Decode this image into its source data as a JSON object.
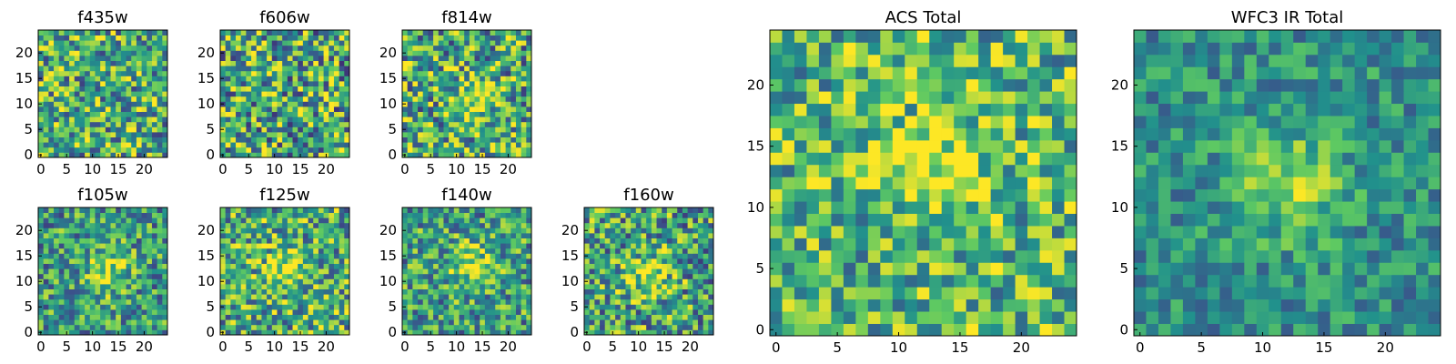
{
  "figure": {
    "description_type": "heatmap grid",
    "colormap": [
      "#440154",
      "#3b528b",
      "#21918c",
      "#5ec962",
      "#fde725"
    ]
  },
  "chart_data": [
    {
      "type": "heatmap",
      "title": "f435w",
      "xticks": [
        0,
        5,
        10,
        15,
        20
      ],
      "yticks": [
        0,
        5,
        10,
        15,
        20
      ],
      "xlim": [
        0,
        24
      ],
      "ylim": [
        0,
        24
      ],
      "grid": 25,
      "bright_spot": null,
      "seed": 11,
      "mean": 0.62,
      "spread": 0.42
    },
    {
      "type": "heatmap",
      "title": "f606w",
      "xticks": [
        0,
        5,
        10,
        15,
        20
      ],
      "yticks": [
        0,
        5,
        10,
        15,
        20
      ],
      "xlim": [
        0,
        24
      ],
      "ylim": [
        0,
        24
      ],
      "grid": 25,
      "bright_spot": null,
      "seed": 23,
      "mean": 0.6,
      "spread": 0.45
    },
    {
      "type": "heatmap",
      "title": "f814w",
      "xticks": [
        0,
        5,
        10,
        15,
        20
      ],
      "yticks": [
        0,
        5,
        10,
        15,
        20
      ],
      "xlim": [
        0,
        24
      ],
      "ylim": [
        0,
        24
      ],
      "grid": 25,
      "bright_spot": [
        13,
        11
      ],
      "seed": 37,
      "mean": 0.6,
      "spread": 0.42
    },
    {
      "type": "heatmap",
      "title": "f105w",
      "xticks": [
        0,
        5,
        10,
        15,
        20
      ],
      "yticks": [
        0,
        5,
        10,
        15,
        20
      ],
      "xlim": [
        0,
        24
      ],
      "ylim": [
        0,
        24
      ],
      "grid": 25,
      "bright_spot": [
        13,
        12
      ],
      "seed": 41,
      "mean": 0.55,
      "spread": 0.35
    },
    {
      "type": "heatmap",
      "title": "f125w",
      "xticks": [
        0,
        5,
        10,
        15,
        20
      ],
      "yticks": [
        0,
        5,
        10,
        15,
        20
      ],
      "xlim": [
        0,
        24
      ],
      "ylim": [
        0,
        24
      ],
      "grid": 25,
      "bright_spot": [
        12,
        12
      ],
      "seed": 53,
      "mean": 0.62,
      "spread": 0.4
    },
    {
      "type": "heatmap",
      "title": "f140w",
      "xticks": [
        0,
        5,
        10,
        15,
        20
      ],
      "yticks": [
        0,
        5,
        10,
        15,
        20
      ],
      "xlim": [
        0,
        24
      ],
      "ylim": [
        0,
        24
      ],
      "grid": 25,
      "bright_spot": [
        13,
        13
      ],
      "seed": 67,
      "mean": 0.56,
      "spread": 0.36
    },
    {
      "type": "heatmap",
      "title": "f160w",
      "xticks": [
        0,
        5,
        10,
        15,
        20
      ],
      "yticks": [
        0,
        5,
        10,
        15,
        20
      ],
      "xlim": [
        0,
        24
      ],
      "ylim": [
        0,
        24
      ],
      "grid": 25,
      "bright_spot": [
        12,
        11
      ],
      "seed": 79,
      "mean": 0.58,
      "spread": 0.4
    },
    {
      "type": "heatmap",
      "title": "ACS Total",
      "xticks": [
        0,
        5,
        10,
        15,
        20
      ],
      "yticks": [
        0,
        5,
        10,
        15,
        20
      ],
      "xlim": [
        0,
        24
      ],
      "ylim": [
        0,
        24
      ],
      "grid": 25,
      "bright_spot": [
        13,
        13
      ],
      "seed": 89,
      "mean": 0.66,
      "spread": 0.35
    },
    {
      "type": "heatmap",
      "title": "WFC3 IR Total",
      "xticks": [
        0,
        5,
        10,
        15,
        20
      ],
      "yticks": [
        0,
        5,
        10,
        15,
        20
      ],
      "xlim": [
        0,
        24
      ],
      "ylim": [
        0,
        24
      ],
      "grid": 25,
      "bright_spot": [
        12,
        12
      ],
      "seed": 97,
      "mean": 0.5,
      "spread": 0.22
    }
  ]
}
